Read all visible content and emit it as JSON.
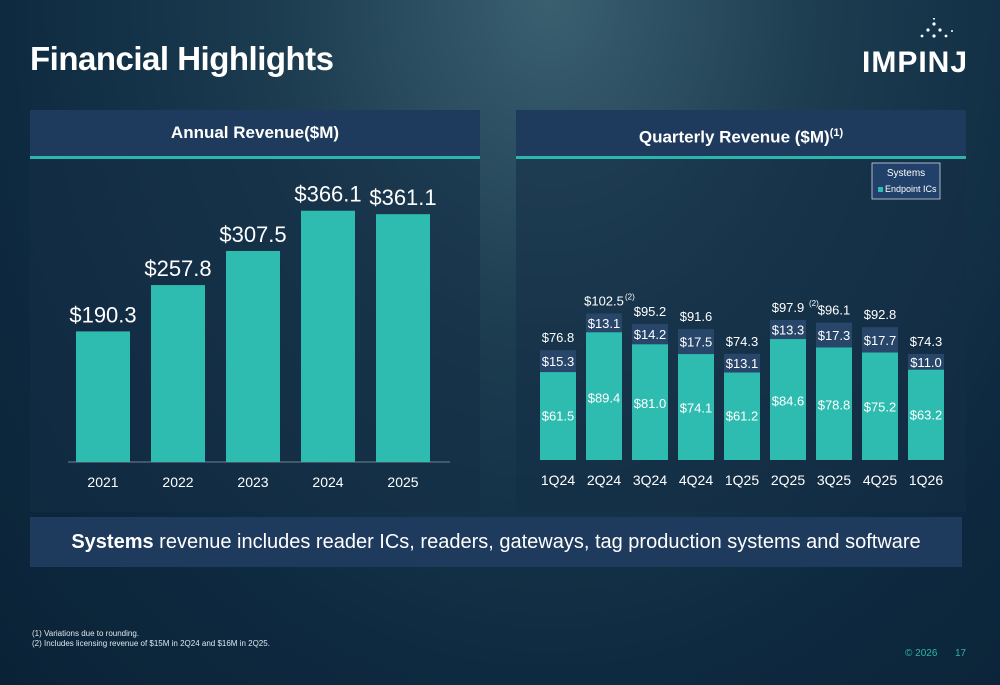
{
  "page_title": "Financial Highlights",
  "logo_text": "IMPINJ",
  "annual": {
    "header": "Annual Revenue($M)"
  },
  "quarterly": {
    "header": "Quarterly Revenue ($M)",
    "header_sup": "(1)"
  },
  "legend": {
    "systems": "Systems",
    "endpoint": "Endpoint ICs"
  },
  "banner": {
    "bold": "Systems",
    "rest": " revenue includes reader ICs, readers, gateways, tag production systems and software"
  },
  "footnotes": [
    "(1)    Variations due to rounding.",
    "(2)    Includes licensing revenue of $15M in 2Q24 and $16M in 2Q25."
  ],
  "copyright": "©  2026",
  "page_number": "17",
  "colors": {
    "teal": "#2fbcb0",
    "systems": "#27466a",
    "accent": "#2cb5aa"
  },
  "chart_data": [
    {
      "type": "bar",
      "title": "Annual Revenue($M)",
      "categories": [
        "2021",
        "2022",
        "2023",
        "2024",
        "2025"
      ],
      "values": [
        190.3,
        257.8,
        307.5,
        366.1,
        361.1
      ],
      "labels": [
        "$190.3",
        "$257.8",
        "$307.5",
        "$366.1",
        "$361.1"
      ],
      "ylim": [
        0,
        400
      ]
    },
    {
      "type": "bar",
      "stacked": true,
      "title": "Quarterly Revenue ($M)",
      "categories": [
        "1Q24",
        "2Q24",
        "3Q24",
        "4Q24",
        "1Q25",
        "2Q25",
        "3Q25",
        "4Q25",
        "1Q26"
      ],
      "series": [
        {
          "name": "Endpoint ICs",
          "values": [
            61.5,
            89.4,
            81.0,
            74.1,
            61.2,
            84.6,
            78.8,
            75.2,
            63.2
          ],
          "labels": [
            "$61.5",
            "$89.4",
            "$81.0",
            "$74.1",
            "$61.2",
            "$84.6",
            "$78.8",
            "$75.2",
            "$63.2"
          ]
        },
        {
          "name": "Systems",
          "values": [
            15.3,
            13.1,
            14.2,
            17.5,
            13.1,
            13.3,
            17.3,
            17.7,
            11.0
          ],
          "labels": [
            "$15.3",
            "$13.1",
            "$14.2",
            "$17.5",
            "$13.1",
            "$13.3",
            "$17.3",
            "$17.7",
            "$11.0"
          ]
        }
      ],
      "totals": [
        "$76.8",
        "$102.5",
        "$95.2",
        "$91.6",
        "$74.3",
        "$97.9",
        "$96.1",
        "$92.8",
        "$74.3"
      ],
      "total_notes": [
        "",
        "(2)",
        "",
        "",
        "",
        "(2)",
        "",
        "",
        ""
      ],
      "legend": "top-right",
      "ylim": [
        0,
        110
      ]
    }
  ]
}
